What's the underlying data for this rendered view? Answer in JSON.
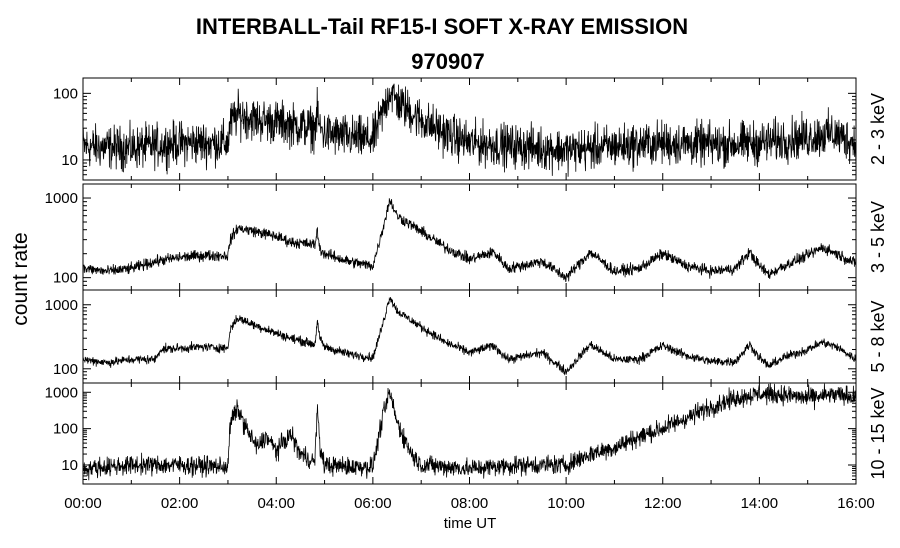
{
  "chart_data": {
    "type": "line",
    "title": "INTERBALL-Tail RF15-I SOFT X-RAY EMISSION",
    "subtitle": "970907",
    "xlabel": "time UT",
    "ylabel": "count rate",
    "x_tick_labels": [
      "00:00",
      "02:00",
      "04:00",
      "06:00",
      "08:00",
      "10:00",
      "12:00",
      "14:00",
      "16:00"
    ],
    "x_range_hours": [
      0,
      16
    ],
    "y_scale": "log",
    "grid": false,
    "panels": [
      {
        "name": "2 - 3 keV",
        "ylim": [
          5,
          170
        ],
        "y_ticks": [
          10,
          100
        ],
        "y_tick_labels": [
          "10",
          "100"
        ],
        "noise_factor": 0.55,
        "x": [
          0,
          1,
          2,
          3,
          3.05,
          3.2,
          3.4,
          3.6,
          4,
          4.5,
          4.8,
          4.85,
          4.9,
          5.0,
          5.5,
          6.0,
          6.2,
          6.35,
          6.5,
          7.0,
          7.5,
          8,
          9,
          10,
          11,
          12,
          13,
          14,
          15,
          15.5,
          16
        ],
        "y": [
          16,
          15,
          18,
          18,
          35,
          48,
          44,
          40,
          37,
          32,
          30,
          50,
          30,
          25,
          22,
          20,
          50,
          110,
          75,
          40,
          25,
          18,
          16,
          14,
          16,
          18,
          17,
          18,
          22,
          25,
          18
        ]
      },
      {
        "name": "3 - 5 keV",
        "ylim": [
          70,
          1500
        ],
        "y_ticks": [
          100,
          1000
        ],
        "y_tick_labels": [
          "100",
          "1000"
        ],
        "noise_factor": 0.12,
        "x": [
          0,
          0.5,
          1,
          1.5,
          2,
          2.5,
          3,
          3.05,
          3.2,
          3.5,
          4,
          4.3,
          4.8,
          4.85,
          4.9,
          5.0,
          5.5,
          6.0,
          6.2,
          6.35,
          6.5,
          7.0,
          7.5,
          8,
          8.5,
          8.8,
          9.5,
          10,
          10.5,
          11,
          11.5,
          12,
          12.5,
          13,
          13.5,
          13.8,
          14,
          14.2,
          14.5,
          15,
          15.3,
          15.6,
          16
        ],
        "y": [
          130,
          120,
          130,
          160,
          180,
          190,
          190,
          300,
          420,
          390,
          330,
          280,
          260,
          390,
          230,
          200,
          160,
          140,
          400,
          950,
          600,
          380,
          240,
          170,
          210,
          130,
          160,
          100,
          210,
          120,
          130,
          200,
          140,
          120,
          130,
          210,
          140,
          110,
          140,
          190,
          240,
          200,
          150
        ]
      },
      {
        "name": "5 - 8 keV",
        "ylim": [
          60,
          1700
        ],
        "y_ticks": [
          100,
          1000
        ],
        "y_tick_labels": [
          "100",
          "1000"
        ],
        "noise_factor": 0.12,
        "x": [
          0,
          0.5,
          1,
          1.5,
          1.6,
          2,
          2.5,
          3,
          3.05,
          3.2,
          3.5,
          4,
          4.3,
          4.8,
          4.85,
          4.9,
          5.0,
          5.5,
          6.0,
          6.2,
          6.35,
          6.5,
          7.0,
          7.5,
          8,
          8.5,
          8.8,
          9.5,
          10,
          10.5,
          11,
          11.5,
          12,
          12.5,
          13,
          13.5,
          13.8,
          14,
          14.2,
          14.5,
          15,
          15.3,
          15.6,
          16
        ],
        "y": [
          140,
          125,
          140,
          140,
          200,
          210,
          220,
          210,
          420,
          620,
          500,
          360,
          300,
          240,
          560,
          300,
          220,
          170,
          150,
          480,
          1350,
          800,
          450,
          260,
          180,
          230,
          140,
          180,
          90,
          240,
          140,
          140,
          230,
          160,
          130,
          130,
          240,
          150,
          110,
          150,
          200,
          260,
          220,
          140
        ]
      },
      {
        "name": "10 - 15 keV",
        "ylim": [
          3,
          1800
        ],
        "y_ticks": [
          10,
          100,
          1000
        ],
        "y_tick_labels": [
          "10",
          "100",
          "1000"
        ],
        "noise_factor": 0.45,
        "x": [
          0,
          1,
          2,
          3,
          3.05,
          3.2,
          3.4,
          3.6,
          3.8,
          4.0,
          4.3,
          4.5,
          4.8,
          4.85,
          4.9,
          5.0,
          5.5,
          6.0,
          6.2,
          6.35,
          6.5,
          6.8,
          7.0,
          7.5,
          8,
          9,
          10,
          10.5,
          11,
          11.5,
          12,
          12.5,
          13,
          13.5,
          14,
          14.5,
          15,
          15.5,
          16
        ],
        "y": [
          8,
          10,
          10,
          9,
          150,
          350,
          90,
          30,
          60,
          25,
          70,
          20,
          12,
          450,
          30,
          10,
          9,
          9,
          200,
          1000,
          150,
          20,
          10,
          9,
          8,
          10,
          10,
          20,
          30,
          60,
          100,
          200,
          400,
          700,
          900,
          850,
          700,
          850,
          750
        ]
      }
    ]
  }
}
